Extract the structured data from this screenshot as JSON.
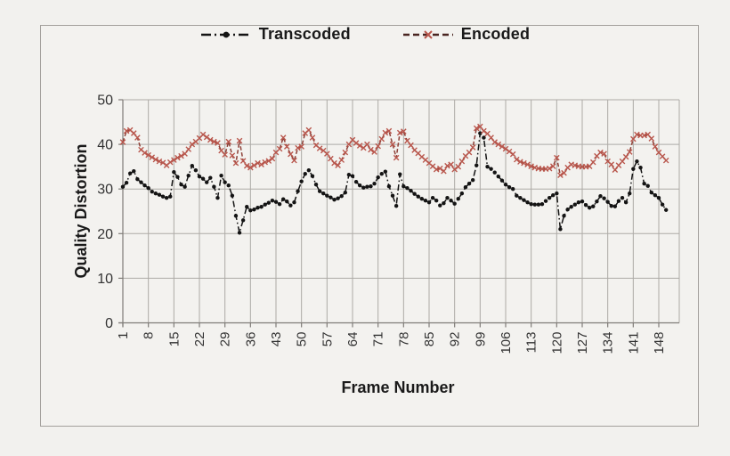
{
  "window": {
    "background_color": "#f2f1ee",
    "frame_border_color": "#a3a09c"
  },
  "legend": {
    "position": "top-center",
    "items": [
      {
        "label": "Transcoded",
        "line_style": "dash-dot",
        "marker": "circle",
        "color": "#141414"
      },
      {
        "label": "Encoded",
        "line_style": "dashed",
        "marker": "x",
        "color": "#8e4138",
        "marker_color": "#b9574d"
      }
    ]
  },
  "chart_data": {
    "type": "line",
    "title": "",
    "xlabel": "Frame Number",
    "ylabel": "Quality Distortion",
    "ylim": [
      0,
      50
    ],
    "y_ticks": [
      0,
      10,
      20,
      30,
      40,
      50
    ],
    "x_ticks": [
      1,
      8,
      15,
      22,
      29,
      36,
      43,
      50,
      57,
      64,
      71,
      78,
      85,
      92,
      99,
      106,
      113,
      120,
      127,
      134,
      141,
      148
    ],
    "x_tick_rotation_deg": -90,
    "grid": true,
    "legend_position": "top",
    "x_start": 1,
    "x_step": 1,
    "x": [
      1,
      2,
      3,
      4,
      5,
      6,
      7,
      8,
      9,
      10,
      11,
      12,
      13,
      14,
      15,
      16,
      17,
      18,
      19,
      20,
      21,
      22,
      23,
      24,
      25,
      26,
      27,
      28,
      29,
      30,
      31,
      32,
      33,
      34,
      35,
      36,
      37,
      38,
      39,
      40,
      41,
      42,
      43,
      44,
      45,
      46,
      47,
      48,
      49,
      50,
      51,
      52,
      53,
      54,
      55,
      56,
      57,
      58,
      59,
      60,
      61,
      62,
      63,
      64,
      65,
      66,
      67,
      68,
      69,
      70,
      71,
      72,
      73,
      74,
      75,
      76,
      77,
      78,
      79,
      80,
      81,
      82,
      83,
      84,
      85,
      86,
      87,
      88,
      89,
      90,
      91,
      92,
      93,
      94,
      95,
      96,
      97,
      98,
      99,
      100,
      101,
      102,
      103,
      104,
      105,
      106,
      107,
      108,
      109,
      110,
      111,
      112,
      113,
      114,
      115,
      116,
      117,
      118,
      119,
      120,
      121,
      122,
      123,
      124,
      125,
      126,
      127,
      128,
      129,
      130,
      131,
      132,
      133,
      134,
      135,
      136,
      137,
      138,
      139,
      140,
      141,
      142,
      143,
      144,
      145,
      146,
      147,
      148,
      149,
      150
    ],
    "series": [
      {
        "name": "Transcoded",
        "color": "#141414",
        "marker": "circle",
        "line_style": "dash-dot",
        "values": [
          30.5,
          31.4,
          33.5,
          34.0,
          32.2,
          31.5,
          30.8,
          30.2,
          29.4,
          29.0,
          28.7,
          28.3,
          28.0,
          28.3,
          33.8,
          32.7,
          31.0,
          30.5,
          33.0,
          35.2,
          34.2,
          32.8,
          32.3,
          31.5,
          32.5,
          30.5,
          28.0,
          33.0,
          31.5,
          30.8,
          28.5,
          24.0,
          20.2,
          23.0,
          26.0,
          25.2,
          25.4,
          25.8,
          26.0,
          26.5,
          26.9,
          27.4,
          27.1,
          26.6,
          27.7,
          27.2,
          26.3,
          27.0,
          29.5,
          31.7,
          33.4,
          34.2,
          32.9,
          31.0,
          29.5,
          29.0,
          28.5,
          28.1,
          27.6,
          27.9,
          28.4,
          29.2,
          33.2,
          32.9,
          31.6,
          30.8,
          30.3,
          30.5,
          30.6,
          31.2,
          32.6,
          33.4,
          33.9,
          30.6,
          28.5,
          26.2,
          33.3,
          30.6,
          30.2,
          29.6,
          28.9,
          28.3,
          27.8,
          27.4,
          27.0,
          28.0,
          27.4,
          26.3,
          26.8,
          28.0,
          27.4,
          26.7,
          27.8,
          29.0,
          30.4,
          31.2,
          32.0,
          35.3,
          42.5,
          41.5,
          35.0,
          34.5,
          33.7,
          32.8,
          31.9,
          31.0,
          30.4,
          30.0,
          28.5,
          28.0,
          27.5,
          27.0,
          26.6,
          26.5,
          26.5,
          26.6,
          27.3,
          28.0,
          28.6,
          29.0,
          21.0,
          24.0,
          25.4,
          26.0,
          26.5,
          27.0,
          27.2,
          26.4,
          25.8,
          26.1,
          27.2,
          28.4,
          27.9,
          27.1,
          26.2,
          26.1,
          27.3,
          28.0,
          27.0,
          29.0,
          34.5,
          36.2,
          34.8,
          31.2,
          30.7,
          29.2,
          28.6,
          28.0,
          26.5,
          25.3
        ]
      },
      {
        "name": "Encoded",
        "color": "#8e4138",
        "marker": "x",
        "marker_color": "#b9574d",
        "line_style": "dashed",
        "values": [
          40.5,
          43.0,
          43.2,
          42.5,
          41.5,
          38.8,
          38.1,
          37.6,
          37.1,
          36.6,
          36.2,
          35.9,
          35.3,
          36.0,
          36.5,
          37.0,
          37.4,
          37.9,
          38.9,
          40.0,
          40.6,
          41.4,
          42.2,
          41.6,
          41.0,
          40.6,
          40.3,
          38.6,
          37.7,
          40.6,
          37.5,
          35.8,
          40.8,
          36.3,
          35.2,
          34.8,
          35.3,
          35.8,
          35.5,
          36.0,
          36.3,
          36.8,
          38.2,
          39.0,
          41.5,
          39.5,
          37.8,
          36.4,
          39.2,
          39.5,
          42.5,
          43.2,
          41.5,
          39.8,
          39.1,
          38.6,
          37.9,
          36.8,
          35.8,
          35.3,
          36.5,
          38.2,
          40.0,
          41.0,
          40.3,
          39.7,
          39.2,
          40.0,
          38.8,
          38.3,
          39.6,
          41.2,
          42.6,
          43.0,
          40.0,
          37.0,
          42.6,
          42.9,
          40.8,
          39.8,
          38.7,
          38.0,
          37.2,
          36.5,
          35.8,
          35.1,
          34.4,
          34.6,
          34.0,
          35.2,
          35.5,
          34.4,
          35.0,
          36.2,
          37.4,
          38.2,
          39.3,
          43.6,
          44.0,
          43.0,
          42.4,
          41.5,
          40.5,
          40.0,
          39.5,
          39.0,
          38.4,
          37.8,
          36.6,
          36.1,
          35.8,
          35.5,
          35.1,
          34.8,
          34.6,
          34.5,
          34.5,
          34.6,
          35.1,
          37.0,
          33.1,
          33.6,
          34.8,
          35.5,
          35.3,
          35.1,
          35.0,
          35.0,
          35.1,
          36.0,
          37.4,
          38.2,
          37.9,
          36.2,
          35.5,
          34.3,
          35.3,
          36.2,
          37.2,
          38.3,
          41.2,
          42.2,
          42.0,
          42.0,
          42.2,
          41.3,
          39.5,
          38.2,
          37.3,
          36.4
        ]
      }
    ]
  }
}
